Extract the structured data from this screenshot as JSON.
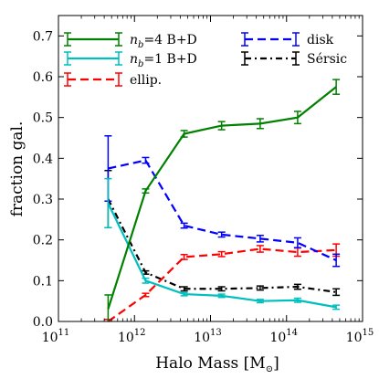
{
  "chart_data": {
    "type": "line",
    "xlabel_text": "Halo Mass [M",
    "xlabel_sub": "⊙",
    "xlabel_close": "]",
    "ylabel": "fraction gal.",
    "x_scale": "log",
    "xlim": [
      100000000000.0,
      1000000000000000.0
    ],
    "ylim": [
      0,
      0.75
    ],
    "x_ticks": [
      {
        "value": 100000000000.0,
        "base": "10",
        "exp": "11"
      },
      {
        "value": 1000000000000.0,
        "base": "10",
        "exp": "12"
      },
      {
        "value": 10000000000000.0,
        "base": "10",
        "exp": "13"
      },
      {
        "value": 100000000000000.0,
        "base": "10",
        "exp": "14"
      },
      {
        "value": 1000000000000000.0,
        "base": "10",
        "exp": "15"
      }
    ],
    "y_ticks": [
      "0.0",
      "0.1",
      "0.2",
      "0.3",
      "0.4",
      "0.5",
      "0.6",
      "0.7"
    ],
    "grid": false,
    "legend_placement": "top",
    "series": [
      {
        "id": "nb4",
        "legend_main": "n",
        "legend_sub": "b",
        "legend_rest": "=4 B+D",
        "color": "#008000",
        "dash": "solid",
        "x": [
          450000000000.0,
          1400000000000.0,
          4500000000000.0,
          14000000000000.0,
          45000000000000.0,
          140000000000000.0,
          450000000000000.0
        ],
        "y": [
          0.03,
          0.32,
          0.46,
          0.48,
          0.485,
          0.5,
          0.575
        ],
        "err": [
          0.035,
          0.005,
          0.008,
          0.01,
          0.012,
          0.015,
          0.018
        ]
      },
      {
        "id": "nb1",
        "legend_main": "n",
        "legend_sub": "b",
        "legend_rest": "=1 B+D",
        "color": "#00bfbf",
        "dash": "solid",
        "x": [
          450000000000.0,
          1400000000000.0,
          4500000000000.0,
          14000000000000.0,
          45000000000000.0,
          140000000000000.0,
          450000000000000.0
        ],
        "y": [
          0.29,
          0.1,
          0.067,
          0.063,
          0.05,
          0.052,
          0.035
        ],
        "err": [
          0.06,
          0.006,
          0.004,
          0.004,
          0.004,
          0.005,
          0.005
        ]
      },
      {
        "id": "ellip",
        "legend_main": "ellip.",
        "legend_sub": "",
        "legend_rest": "",
        "color": "#ff0000",
        "dash": "dashed",
        "x": [
          450000000000.0,
          1400000000000.0,
          4500000000000.0,
          14000000000000.0,
          45000000000000.0,
          140000000000000.0,
          450000000000000.0
        ],
        "y": [
          0.0,
          0.065,
          0.158,
          0.165,
          0.178,
          0.17,
          0.175
        ],
        "err": [
          0.005,
          0.004,
          0.006,
          0.006,
          0.008,
          0.01,
          0.015
        ]
      },
      {
        "id": "disk",
        "legend_main": "disk",
        "legend_sub": "",
        "legend_rest": "",
        "color": "#0000ff",
        "dash": "dashed",
        "x": [
          450000000000.0,
          1400000000000.0,
          4500000000000.0,
          14000000000000.0,
          45000000000000.0,
          140000000000000.0,
          450000000000000.0
        ],
        "y": [
          0.375,
          0.395,
          0.235,
          0.213,
          0.203,
          0.193,
          0.15
        ],
        "err": [
          0.08,
          0.007,
          0.006,
          0.006,
          0.008,
          0.012,
          0.015
        ]
      },
      {
        "id": "sersic",
        "legend_main": "Sérsic",
        "legend_sub": "",
        "legend_rest": "",
        "color": "#000000",
        "dash": "dashdot",
        "x": [
          450000000000.0,
          1400000000000.0,
          4500000000000.0,
          14000000000000.0,
          45000000000000.0,
          140000000000000.0,
          450000000000000.0
        ],
        "y": [
          0.3,
          0.12,
          0.08,
          0.08,
          0.082,
          0.085,
          0.072
        ],
        "err": [
          0.07,
          0.004,
          0.005,
          0.005,
          0.005,
          0.006,
          0.008
        ]
      }
    ]
  }
}
